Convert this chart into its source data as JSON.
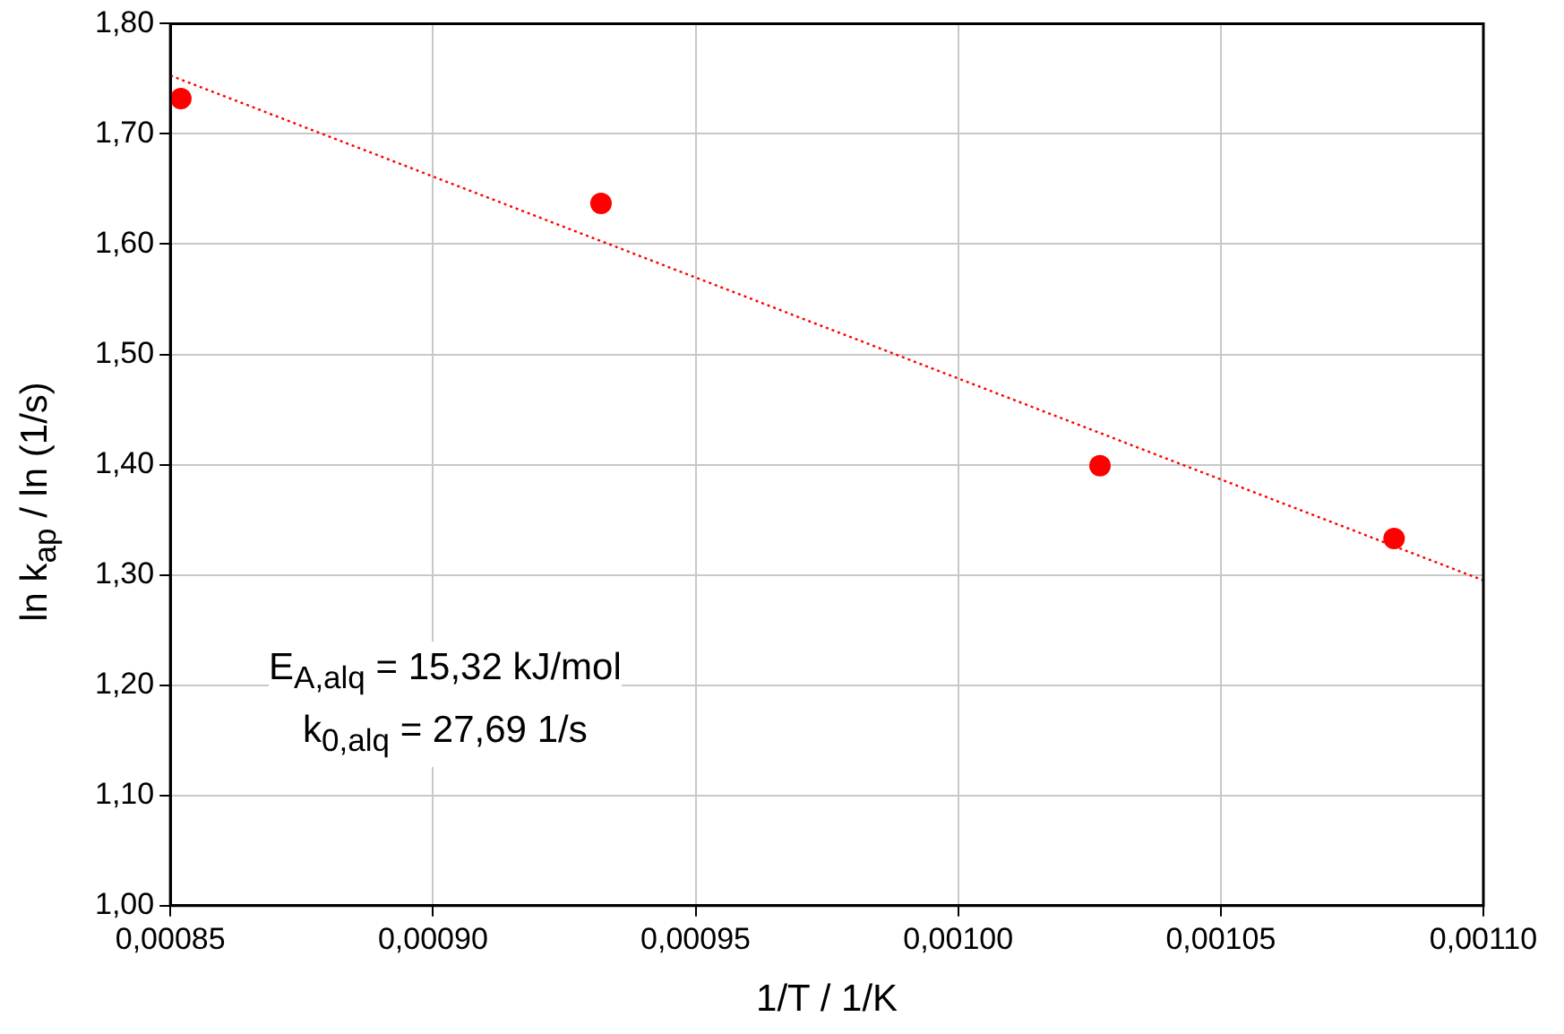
{
  "chart_data": {
    "type": "scatter",
    "xlabel": "1/T / 1/K",
    "ylabel": "ln k$_{ap}$ / ln (1/s)",
    "series": [
      {
        "type": "scatter",
        "color": "#ff0000",
        "x": [
          0.000852,
          0.000932,
          0.001027,
          0.001083
        ],
        "values": [
          1.732,
          1.637,
          1.399,
          1.333
        ],
        "marker": "circle"
      },
      {
        "type": "line",
        "color": "#ff0000",
        "x": [
          0.00085,
          0.0011
        ],
        "values": [
          1.753,
          1.295
        ],
        "marker": "none",
        "line_style": "dotted"
      }
    ],
    "xlim": [
      0.00085,
      0.0011
    ],
    "xticks": [
      {
        "value": 0.00085,
        "label": "0,00085"
      },
      {
        "value": 0.0009,
        "label": "0,00090"
      },
      {
        "value": 0.00095,
        "label": "0,00095"
      },
      {
        "value": 0.001,
        "label": "0,00100"
      },
      {
        "value": 0.00105,
        "label": "0,00105"
      },
      {
        "value": 0.0011,
        "label": "0,00110"
      }
    ],
    "ylim": [
      1.0,
      1.8
    ],
    "yticks": [
      {
        "value": 1.0,
        "label": "1,00"
      },
      {
        "value": 1.1,
        "label": "1,10"
      },
      {
        "value": 1.2,
        "label": "1,20"
      },
      {
        "value": 1.3,
        "label": "1,30"
      },
      {
        "value": 1.4,
        "label": "1,40"
      },
      {
        "value": 1.5,
        "label": "1,50"
      },
      {
        "value": 1.6,
        "label": "1,60"
      },
      {
        "value": 1.7,
        "label": "1,70"
      },
      {
        "value": 1.8,
        "label": "1,80"
      }
    ],
    "grid": true,
    "legend": false,
    "annotations": [
      "E$_{A,alq}$ = 15,32 kJ/mol",
      "k$_{0,alq}$ = 27,69 1/s"
    ]
  }
}
